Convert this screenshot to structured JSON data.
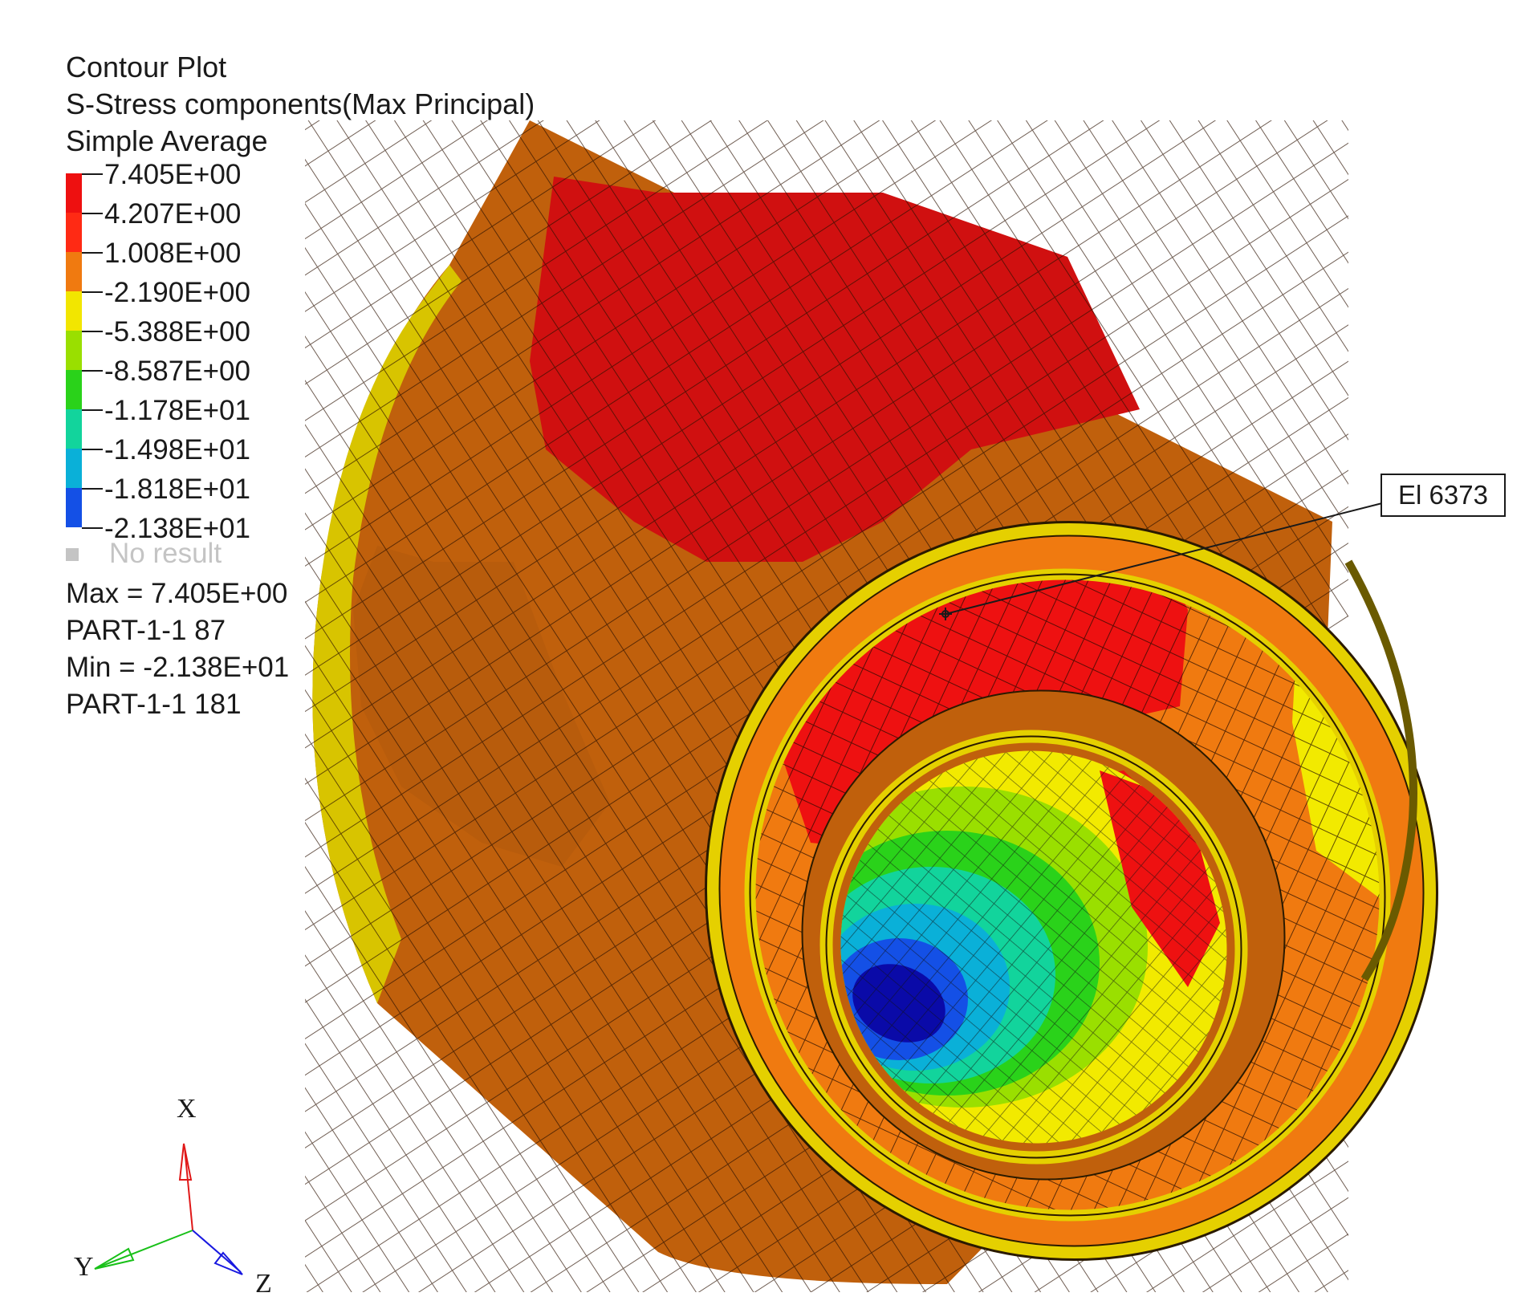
{
  "plot": {
    "title": "Contour Plot",
    "result": "S-Stress components(Max Principal)",
    "averaging": "Simple Average"
  },
  "legend": {
    "levels": [
      {
        "label": "7.405E+00",
        "color": "#ee1010"
      },
      {
        "label": "4.207E+00",
        "color": "#ff2a14"
      },
      {
        "label": "1.008E+00",
        "color": "#f07a10"
      },
      {
        "label": "-2.190E+00",
        "color": "#f2e600"
      },
      {
        "label": "-5.388E+00",
        "color": "#9adf00"
      },
      {
        "label": "-8.587E+00",
        "color": "#2ad21a"
      },
      {
        "label": "-1.178E+01",
        "color": "#12d49c"
      },
      {
        "label": "-1.498E+01",
        "color": "#0ab0d8"
      },
      {
        "label": "-1.818E+01",
        "color": "#1450e6"
      },
      {
        "label": "-2.138E+01",
        "color": "#0a0aa8"
      }
    ],
    "no_result_label": "No result",
    "no_result_color": "#c4c4c4"
  },
  "info": {
    "max_line": "Max = 7.405E+00",
    "max_location": "PART-1-1 87",
    "min_line": "Min = -2.138E+01",
    "min_location": "PART-1-1 181"
  },
  "element_label": "El 6373",
  "triad": {
    "x_label": "X",
    "y_label": "Y",
    "z_label": "Z",
    "x_color": "#e01818",
    "y_color": "#18c018",
    "z_color": "#1818e0"
  }
}
